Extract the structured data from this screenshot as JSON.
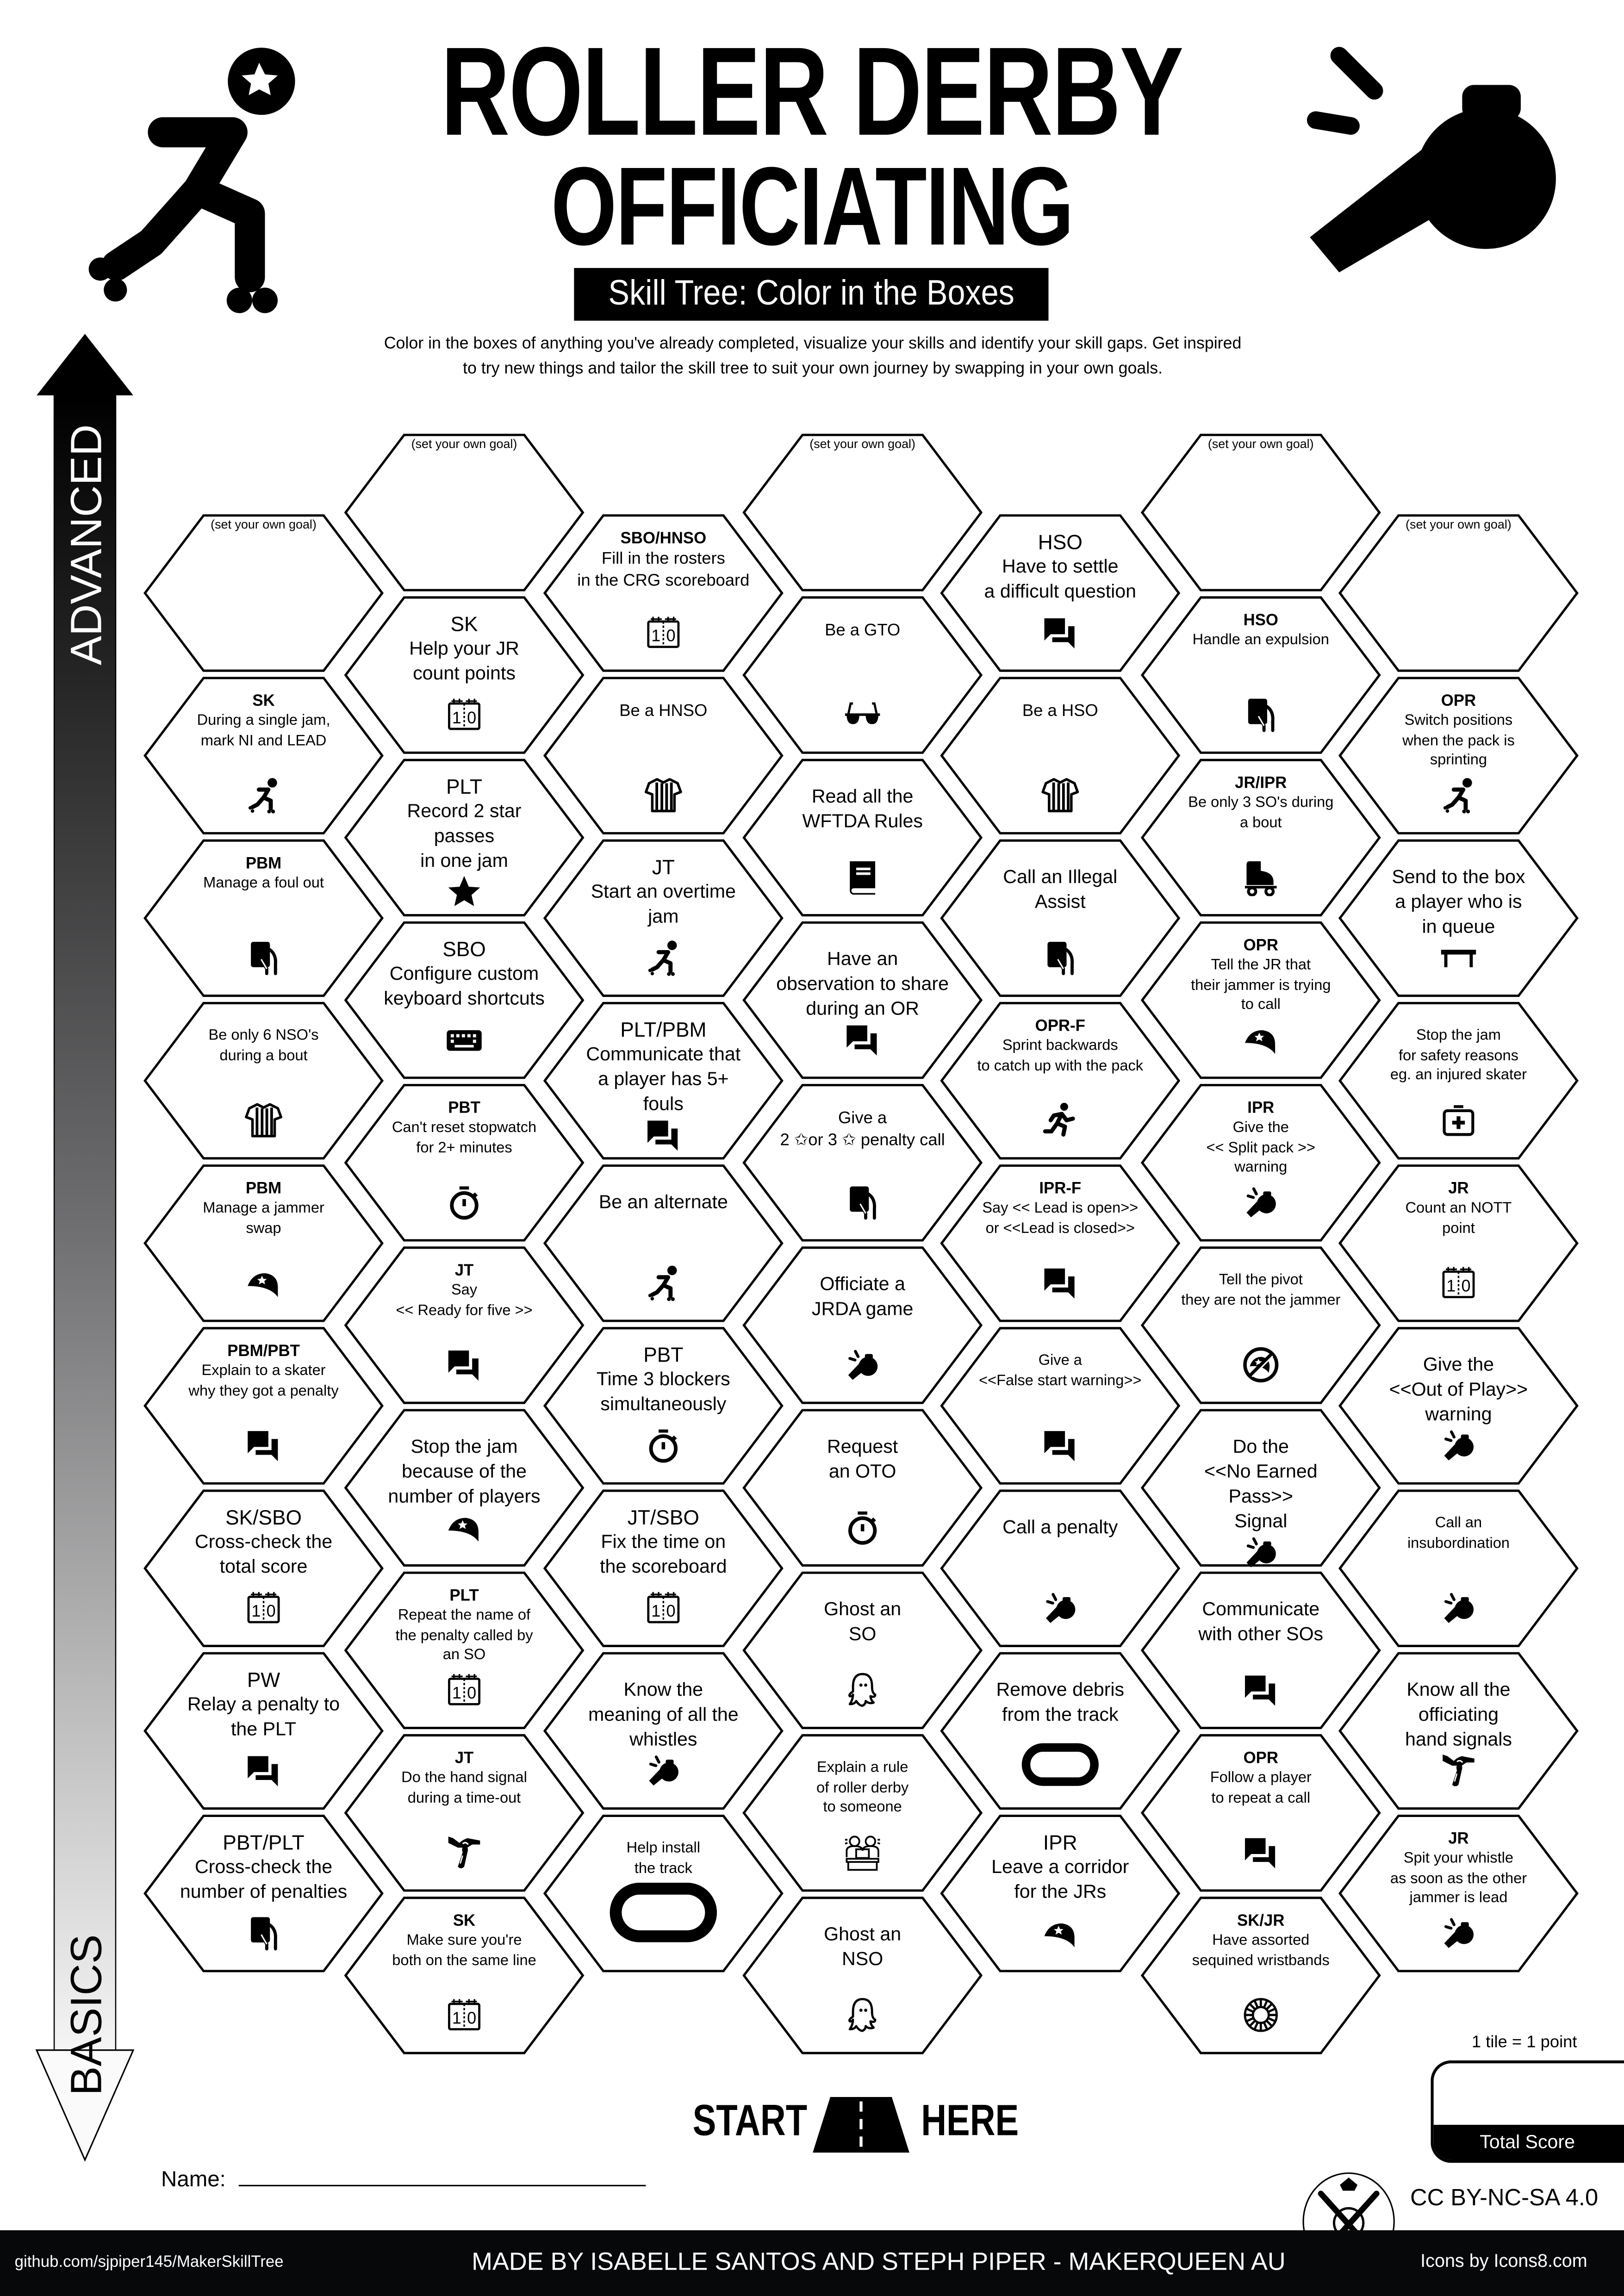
{
  "header": {
    "title_line1": "ROLLER DERBY",
    "title_line2": "OFFICIATING",
    "subtitle": "Skill Tree: Color in the Boxes",
    "description_line1": "Color in the boxes of anything you've already completed, visualize your skills and identify your skill gaps.  Get inspired",
    "description_line2": "to try new things and tailor the skill tree to suit your own journey by swapping in your own goals.",
    "left_icon": "roller-skater-icon",
    "right_icon": "whistle-icon"
  },
  "progress_arrow": {
    "top_label": "ADVANCED",
    "bottom_label": "BASICS"
  },
  "goal_placeholder": "(set your own goal)",
  "columns": [
    [
      {
        "goal": true
      },
      {
        "role": "SK",
        "text": "During a single jam,\nmark NI and LEAD",
        "icon": "skater"
      },
      {
        "role": "PBM",
        "text": "Manage a foul out",
        "icon": "card"
      },
      {
        "role": "",
        "text": "Be only 6 NSO's\nduring a bout",
        "icon": "shirt"
      },
      {
        "role": "PBM",
        "text": "Manage a jammer\nswap",
        "icon": "helmet"
      },
      {
        "role": "PBM/PBT",
        "text": "Explain to a skater\nwhy they got a penalty",
        "icon": "chat"
      },
      {
        "role": "SK/SBO",
        "text": "Cross-check the\ntotal score",
        "icon": "scoreboard"
      },
      {
        "role": "PW",
        "text": "Relay a penalty to\nthe PLT",
        "icon": "chat"
      },
      {
        "role": "PBT/PLT",
        "text": "Cross-check the\nnumber of penalties",
        "icon": "card"
      }
    ],
    [
      {
        "goal": true
      },
      {
        "role": "SK",
        "text": "Help your JR\ncount points",
        "icon": "scoreboard"
      },
      {
        "role": "PLT",
        "text": "Record 2 star passes\nin one jam",
        "icon": "star"
      },
      {
        "role": "SBO",
        "text": "Configure custom\nkeyboard shortcuts",
        "icon": "keyboard"
      },
      {
        "role": "PBT",
        "text": "Can't reset stopwatch\nfor 2+ minutes",
        "icon": "stopwatch"
      },
      {
        "role": "JT",
        "text": "Say\n<< Ready for five >>",
        "icon": "chat"
      },
      {
        "role": "",
        "text": "Stop the jam\nbecause of the\nnumber of players",
        "icon": "helmet"
      },
      {
        "role": "PLT",
        "text": "Repeat the name of\nthe penalty called by\nan SO",
        "icon": "scoreboard"
      },
      {
        "role": "JT",
        "text": "Do the hand signal\nduring a time-out",
        "icon": "hand-signal"
      },
      {
        "role": "SK",
        "text": "Make sure you're\nboth on the same line",
        "icon": "scoreboard"
      }
    ],
    [
      {
        "role": "SBO/HNSO",
        "text": "Fill in the rosters\nin the CRG scoreboard",
        "icon": "scoreboard"
      },
      {
        "role": "",
        "text": "Be a HNSO",
        "icon": "shirt"
      },
      {
        "role": "JT",
        "text": "Start an overtime\njam",
        "icon": "skater"
      },
      {
        "role": "PLT/PBM",
        "text": "Communicate that\na player has 5+ fouls",
        "icon": "chat"
      },
      {
        "role": "",
        "text": "Be an alternate",
        "icon": "skater"
      },
      {
        "role": "PBT",
        "text": "Time 3 blockers\nsimultaneously",
        "icon": "stopwatch"
      },
      {
        "role": "JT/SBO",
        "text": "Fix the time on\nthe scoreboard",
        "icon": "scoreboard"
      },
      {
        "role": "",
        "text": "Know the\nmeaning of all the\nwhistles",
        "icon": "whistle"
      },
      {
        "role": "",
        "text": "Help install\nthe track",
        "icon": "track"
      }
    ],
    [
      {
        "goal": true
      },
      {
        "role": "",
        "text": "Be a GTO",
        "icon": "glasses"
      },
      {
        "role": "",
        "text": "Read all the\nWFTDA Rules",
        "icon": "book"
      },
      {
        "role": "",
        "text": "Have an\nobservation to share\nduring an OR",
        "icon": "chat"
      },
      {
        "role": "",
        "text": "Give a\n2 ✩or 3 ✩  penalty call",
        "icon": "card"
      },
      {
        "role": "",
        "text": "Officiate a\nJRDA game",
        "icon": "whistle"
      },
      {
        "role": "",
        "text": "Request\nan OTO",
        "icon": "stopwatch"
      },
      {
        "role": "",
        "text": "Ghost an\nSO",
        "icon": "ghost"
      },
      {
        "role": "",
        "text": "Explain a rule\nof roller derby\nto someone",
        "icon": "people-laptop"
      },
      {
        "role": "",
        "text": "Ghost an\nNSO",
        "icon": "ghost"
      }
    ],
    [
      {
        "role": "HSO",
        "text": "Have to settle\na difficult question",
        "icon": "chat"
      },
      {
        "role": "",
        "text": "Be a HSO",
        "icon": "shirt"
      },
      {
        "role": "",
        "text": "Call an Illegal\nAssist",
        "icon": "card"
      },
      {
        "role": "OPR-F",
        "text": "Sprint backwards\nto catch up with the pack",
        "icon": "runner"
      },
      {
        "role": "IPR-F",
        "text": "Say << Lead is open>>\nor <<Lead is closed>>",
        "icon": "chat"
      },
      {
        "role": "",
        "text": "Give a\n<<False start warning>>",
        "icon": "chat"
      },
      {
        "role": "",
        "text": "Call a penalty",
        "icon": "whistle"
      },
      {
        "role": "",
        "text": "Remove debris\nfrom the track",
        "icon": "track"
      },
      {
        "role": "IPR",
        "text": "Leave a corridor\nfor the JRs",
        "icon": "helmet"
      }
    ],
    [
      {
        "goal": true
      },
      {
        "role": "HSO",
        "text": "Handle an expulsion",
        "icon": "card"
      },
      {
        "role": "JR/IPR",
        "text": "Be only 3 SO's during\na bout",
        "icon": "roller-skate"
      },
      {
        "role": "OPR",
        "text": "Tell the JR that\ntheir jammer is trying\nto call",
        "icon": "helmet"
      },
      {
        "role": "IPR",
        "text": "Give the\n<< Split pack >>\nwarning",
        "icon": "whistle"
      },
      {
        "role": "",
        "text": "Tell the pivot\nthey are not the jammer",
        "icon": "no-jammer"
      },
      {
        "role": "",
        "text": "Do the\n<<No Earned Pass>>\nSignal",
        "icon": "whistle"
      },
      {
        "role": "",
        "text": "Communicate\nwith other SOs",
        "icon": "chat"
      },
      {
        "role": "OPR",
        "text": "Follow a player\nto repeat a call",
        "icon": "chat"
      },
      {
        "role": "SK/JR",
        "text": "Have assorted\nsequined wristbands",
        "icon": "wristband"
      }
    ],
    [
      {
        "goal": true
      },
      {
        "role": "OPR",
        "text": "Switch positions\nwhen the pack is\nsprinting",
        "icon": "skater"
      },
      {
        "role": "",
        "text": "Send to the box\na player who is\nin queue",
        "icon": "bench"
      },
      {
        "role": "",
        "text": "Stop the jam\nfor safety reasons\neg. an injured skater",
        "icon": "first-aid"
      },
      {
        "role": "JR",
        "text": "Count an NOTT\npoint",
        "icon": "scoreboard"
      },
      {
        "role": "",
        "text": "Give the\n<<Out of Play>>\nwarning",
        "icon": "whistle"
      },
      {
        "role": "",
        "text": "Call an\ninsubordination",
        "icon": "whistle"
      },
      {
        "role": "",
        "text": "Know all the\nofficiating\nhand signals",
        "icon": "hand-signal"
      },
      {
        "role": "JR",
        "text": "Spit your whistle\nas soon as the other\njammer is lead",
        "icon": "whistle"
      }
    ]
  ],
  "start": {
    "start_label": "START",
    "here_label": "HERE",
    "icon": "road-icon"
  },
  "score": {
    "rule": "1 tile = 1 point",
    "label": "Total Score",
    "value": ""
  },
  "name": {
    "label": "Name:",
    "value": ""
  },
  "license": "CC BY-NC-SA 4.0",
  "footer": {
    "repo": "github.com/sjpiper145/MakerSkillTree",
    "credits": "MADE BY ISABELLE SANTOS AND STEPH PIPER  -  MAKERQUEEN AU",
    "icons_credit": "Icons by Icons8.com"
  },
  "colors": {
    "ink": "#000000",
    "paper": "#ffffff",
    "footer_bg": "#07080a"
  }
}
